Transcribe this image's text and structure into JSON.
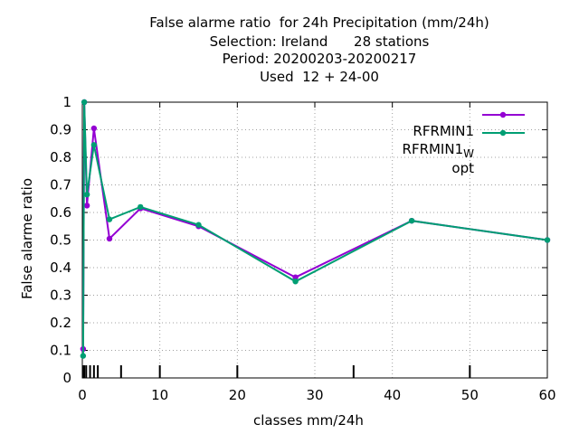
{
  "chart_data": {
    "type": "line",
    "title_lines": [
      "False alarme ratio  for 24h Precipitation (mm/24h)",
      "Selection: Ireland      28 stations",
      "Period: 20200203-20200217",
      "Used  12 + 24-00"
    ],
    "xlabel": "classes mm/24h",
    "ylabel": "False alarme ratio",
    "xlim": [
      0,
      60
    ],
    "ylim": [
      0,
      1
    ],
    "x_ticks": [
      "0",
      "10",
      "20",
      "30",
      "40",
      "50",
      "60"
    ],
    "y_ticks": [
      "0",
      "0.1",
      "0.2",
      "0.3",
      "0.4",
      "0.5",
      "0.6",
      "0.7",
      "0.8",
      "0.9",
      "1"
    ],
    "grid": true,
    "legend_position": "top-right",
    "class_marks_x": [
      0.1,
      0.25,
      0.5,
      1,
      1.5,
      2,
      5,
      10,
      20,
      35,
      50
    ],
    "series": [
      {
        "name": "RFRMIN1",
        "name_main": "RFRMIN1",
        "name_sub": "",
        "name_tail": "",
        "color": "#9400d3",
        "x": [
          0.1,
          0.25,
          0.6,
          1.5,
          3.5,
          7.5,
          15,
          27.5,
          42.5,
          60
        ],
        "y": [
          0.105,
          1.0,
          0.625,
          0.905,
          0.505,
          0.615,
          0.55,
          0.365,
          0.57,
          0.5
        ]
      },
      {
        "name": "RFRMIN1_W opt",
        "name_main": "RFRMIN1",
        "name_sub": "W",
        "name_tail": "opt",
        "color": "#009e73",
        "x": [
          0.1,
          0.25,
          0.6,
          1.5,
          3.5,
          7.5,
          15,
          27.5,
          42.5,
          60
        ],
        "y": [
          0.08,
          1.0,
          0.665,
          0.845,
          0.575,
          0.62,
          0.555,
          0.35,
          0.57,
          0.5
        ]
      }
    ]
  }
}
